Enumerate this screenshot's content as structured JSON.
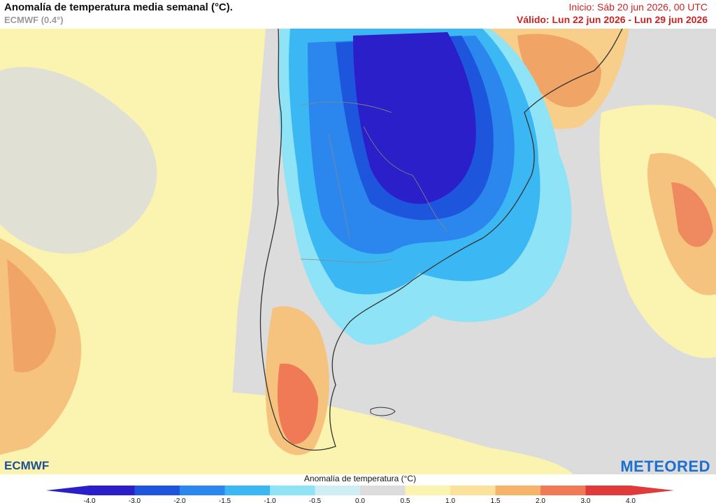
{
  "header": {
    "title": "Anomalía de temperatura media semanal (°C).",
    "model": "ECMWF (0.4°)",
    "init": "Inicio: Sáb 20 jun 2026, 00 UTC",
    "valid": "Válido: Lun 22 jun 2026 - Lun 29 jun 2026"
  },
  "branding": {
    "left_logo": "ECMWF",
    "right_logo": "METEORED"
  },
  "legend": {
    "title": "Anomalía de temperatura (°C)",
    "ticks": [
      "-4.0",
      "-3.0",
      "-2.0",
      "-1.5",
      "-1.0",
      "-0.5",
      "0.0",
      "0.5",
      "1.0",
      "1.5",
      "2.0",
      "3.0",
      "4.0"
    ],
    "colors": [
      "#2a1fc9",
      "#1d56dc",
      "#2b86ee",
      "#3bb8f4",
      "#8fe3f7",
      "#cfeef4",
      "#dcdcdc",
      "#fbf3b0",
      "#fbe19a",
      "#f6b46a",
      "#ef7a55",
      "#e03a3a"
    ]
  }
}
